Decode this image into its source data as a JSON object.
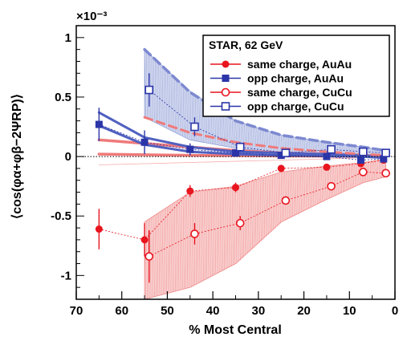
{
  "chart_data": {
    "type": "scatter",
    "xlabel": "% Most Central",
    "ylabel": "⟨cos(φα+φβ−2ΨRP)⟩",
    "y_multiplier": "×10⁻³",
    "xlim": [
      70,
      0
    ],
    "ylim": [
      -1.2,
      1.1
    ],
    "x_ticks": [
      70,
      60,
      50,
      40,
      30,
      20,
      10,
      0
    ],
    "y_ticks": [
      {
        "v": 1,
        "label": "1"
      },
      {
        "v": 0.5,
        "label": "0.5"
      },
      {
        "v": 0,
        "label": "0"
      },
      {
        "v": -0.5,
        "label": "-0.5"
      },
      {
        "v": -1,
        "label": "-1"
      }
    ],
    "zero_line": true,
    "legend": {
      "title": "STAR,  62 GeV",
      "placement": "top-right"
    },
    "series": [
      {
        "name": "same charge, AuAu",
        "color": "#e8141e",
        "marker": "filled-circle",
        "x": [
          65,
          55,
          45,
          35,
          25,
          15,
          7.5,
          2.5
        ],
        "y": [
          -0.61,
          -0.7,
          -0.29,
          -0.26,
          -0.1,
          -0.09,
          -0.06,
          -0.03
        ],
        "err": [
          0.17,
          0.14,
          0.05,
          0.04,
          0.02,
          0.02,
          0.01,
          0.01
        ]
      },
      {
        "name": "opp charge, AuAu",
        "color": "#2b35a8",
        "marker": "filled-square",
        "x": [
          65,
          55,
          45,
          35,
          25,
          15,
          7.5,
          2.5
        ],
        "y": [
          0.27,
          0.12,
          0.06,
          0.03,
          0.01,
          0.0,
          -0.03,
          -0.02
        ],
        "err": [
          0.14,
          0.1,
          0.05,
          0.03,
          0.02,
          0.01,
          0.01,
          0.01
        ]
      },
      {
        "name": "same charge, CuCu",
        "color": "#e8141e",
        "marker": "open-circle",
        "x": [
          54,
          44,
          34,
          24,
          14,
          7,
          2
        ],
        "y": [
          -0.84,
          -0.65,
          -0.56,
          -0.37,
          -0.25,
          -0.13,
          -0.14
        ],
        "err": [
          0.22,
          0.09,
          0.06,
          0.03,
          0.02,
          0.02,
          0.02
        ]
      },
      {
        "name": "opp charge, CuCu",
        "color": "#2b35a8",
        "marker": "open-square",
        "x": [
          54,
          44,
          34,
          24,
          14,
          7,
          2
        ],
        "y": [
          0.56,
          0.25,
          0.08,
          0.03,
          0.06,
          0.04,
          0.03
        ],
        "err": [
          0.14,
          0.08,
          0.04,
          0.02,
          0.02,
          0.02,
          0.01
        ]
      }
    ],
    "bands": [
      {
        "series": "same charge, CuCu",
        "color": "#f08a8a",
        "x": [
          55,
          45,
          35,
          25,
          15,
          7,
          2
        ],
        "upper": [
          -0.55,
          -0.3,
          -0.25,
          -0.13,
          -0.08,
          -0.05,
          -0.02
        ],
        "lower": [
          -1.2,
          -1.1,
          -0.9,
          -0.55,
          -0.36,
          -0.22,
          -0.17
        ]
      },
      {
        "series": "opp charge, CuCu",
        "color": "#8f9fd6",
        "x": [
          55,
          45,
          35,
          25,
          15,
          7,
          2
        ],
        "upper": [
          0.9,
          0.55,
          0.3,
          0.18,
          0.12,
          0.08,
          0.05
        ],
        "lower": [
          0.33,
          0.14,
          0.07,
          0.03,
          0.02,
          0.01,
          0.0
        ]
      },
      {
        "series": "same charge, AuAu",
        "color": "#f7b0b0",
        "x": [
          65,
          55,
          45,
          35,
          25,
          15,
          7.5,
          2.5
        ],
        "upper": [
          -0.07,
          -0.06,
          -0.05,
          -0.04,
          -0.03,
          -0.02,
          -0.01,
          0.0
        ],
        "lower": [
          -0.07,
          -0.06,
          -0.05,
          -0.04,
          -0.03,
          -0.02,
          -0.01,
          0.0
        ]
      }
    ],
    "curves": [
      {
        "name": "same AuAu upper",
        "color": "#f07a7a",
        "dash": false,
        "width": 3.5,
        "x": [
          65,
          55,
          45,
          35,
          25,
          15,
          7.5,
          2.5
        ],
        "y": [
          0.14,
          0.11,
          0.08,
          0.05,
          0.03,
          0.02,
          0.01,
          0.0
        ]
      },
      {
        "name": "same AuAu lower",
        "color": "#f07a7a",
        "dash": false,
        "width": 3.5,
        "x": [
          65,
          55,
          45,
          35,
          25,
          15,
          7.5,
          2.5
        ],
        "y": [
          0.02,
          0.015,
          0.01,
          0.008,
          0.005,
          0.003,
          0.002,
          0.0
        ]
      },
      {
        "name": "opp AuAu upper",
        "color": "#5060c0",
        "dash": false,
        "width": 3,
        "x": [
          65,
          55,
          45,
          35,
          25,
          15,
          7.5,
          2.5
        ],
        "y": [
          0.37,
          0.16,
          0.08,
          0.04,
          0.03,
          0.02,
          0.01,
          0.0
        ]
      },
      {
        "name": "opp AuAu lower",
        "color": "#5060c0",
        "dash": false,
        "width": 3,
        "x": [
          65,
          55,
          45,
          35,
          25,
          15,
          7.5,
          2.5
        ],
        "y": [
          0.26,
          0.1,
          0.04,
          0.02,
          0.01,
          0.005,
          0.0,
          -0.01
        ]
      },
      {
        "name": "same CuCu dashed",
        "color": "#f07a7a",
        "dash": true,
        "width": 3,
        "x": [
          55,
          45,
          35,
          25,
          15,
          7,
          2
        ],
        "y": [
          0.33,
          0.2,
          0.12,
          0.07,
          0.04,
          0.02,
          0.01
        ]
      },
      {
        "name": "opp CuCu dashed",
        "color": "#7d89d0",
        "dash": true,
        "width": 3.5,
        "x": [
          55,
          45,
          35,
          25,
          15,
          7,
          2
        ],
        "y": [
          0.9,
          0.54,
          0.3,
          0.18,
          0.12,
          0.08,
          0.05
        ]
      }
    ]
  }
}
